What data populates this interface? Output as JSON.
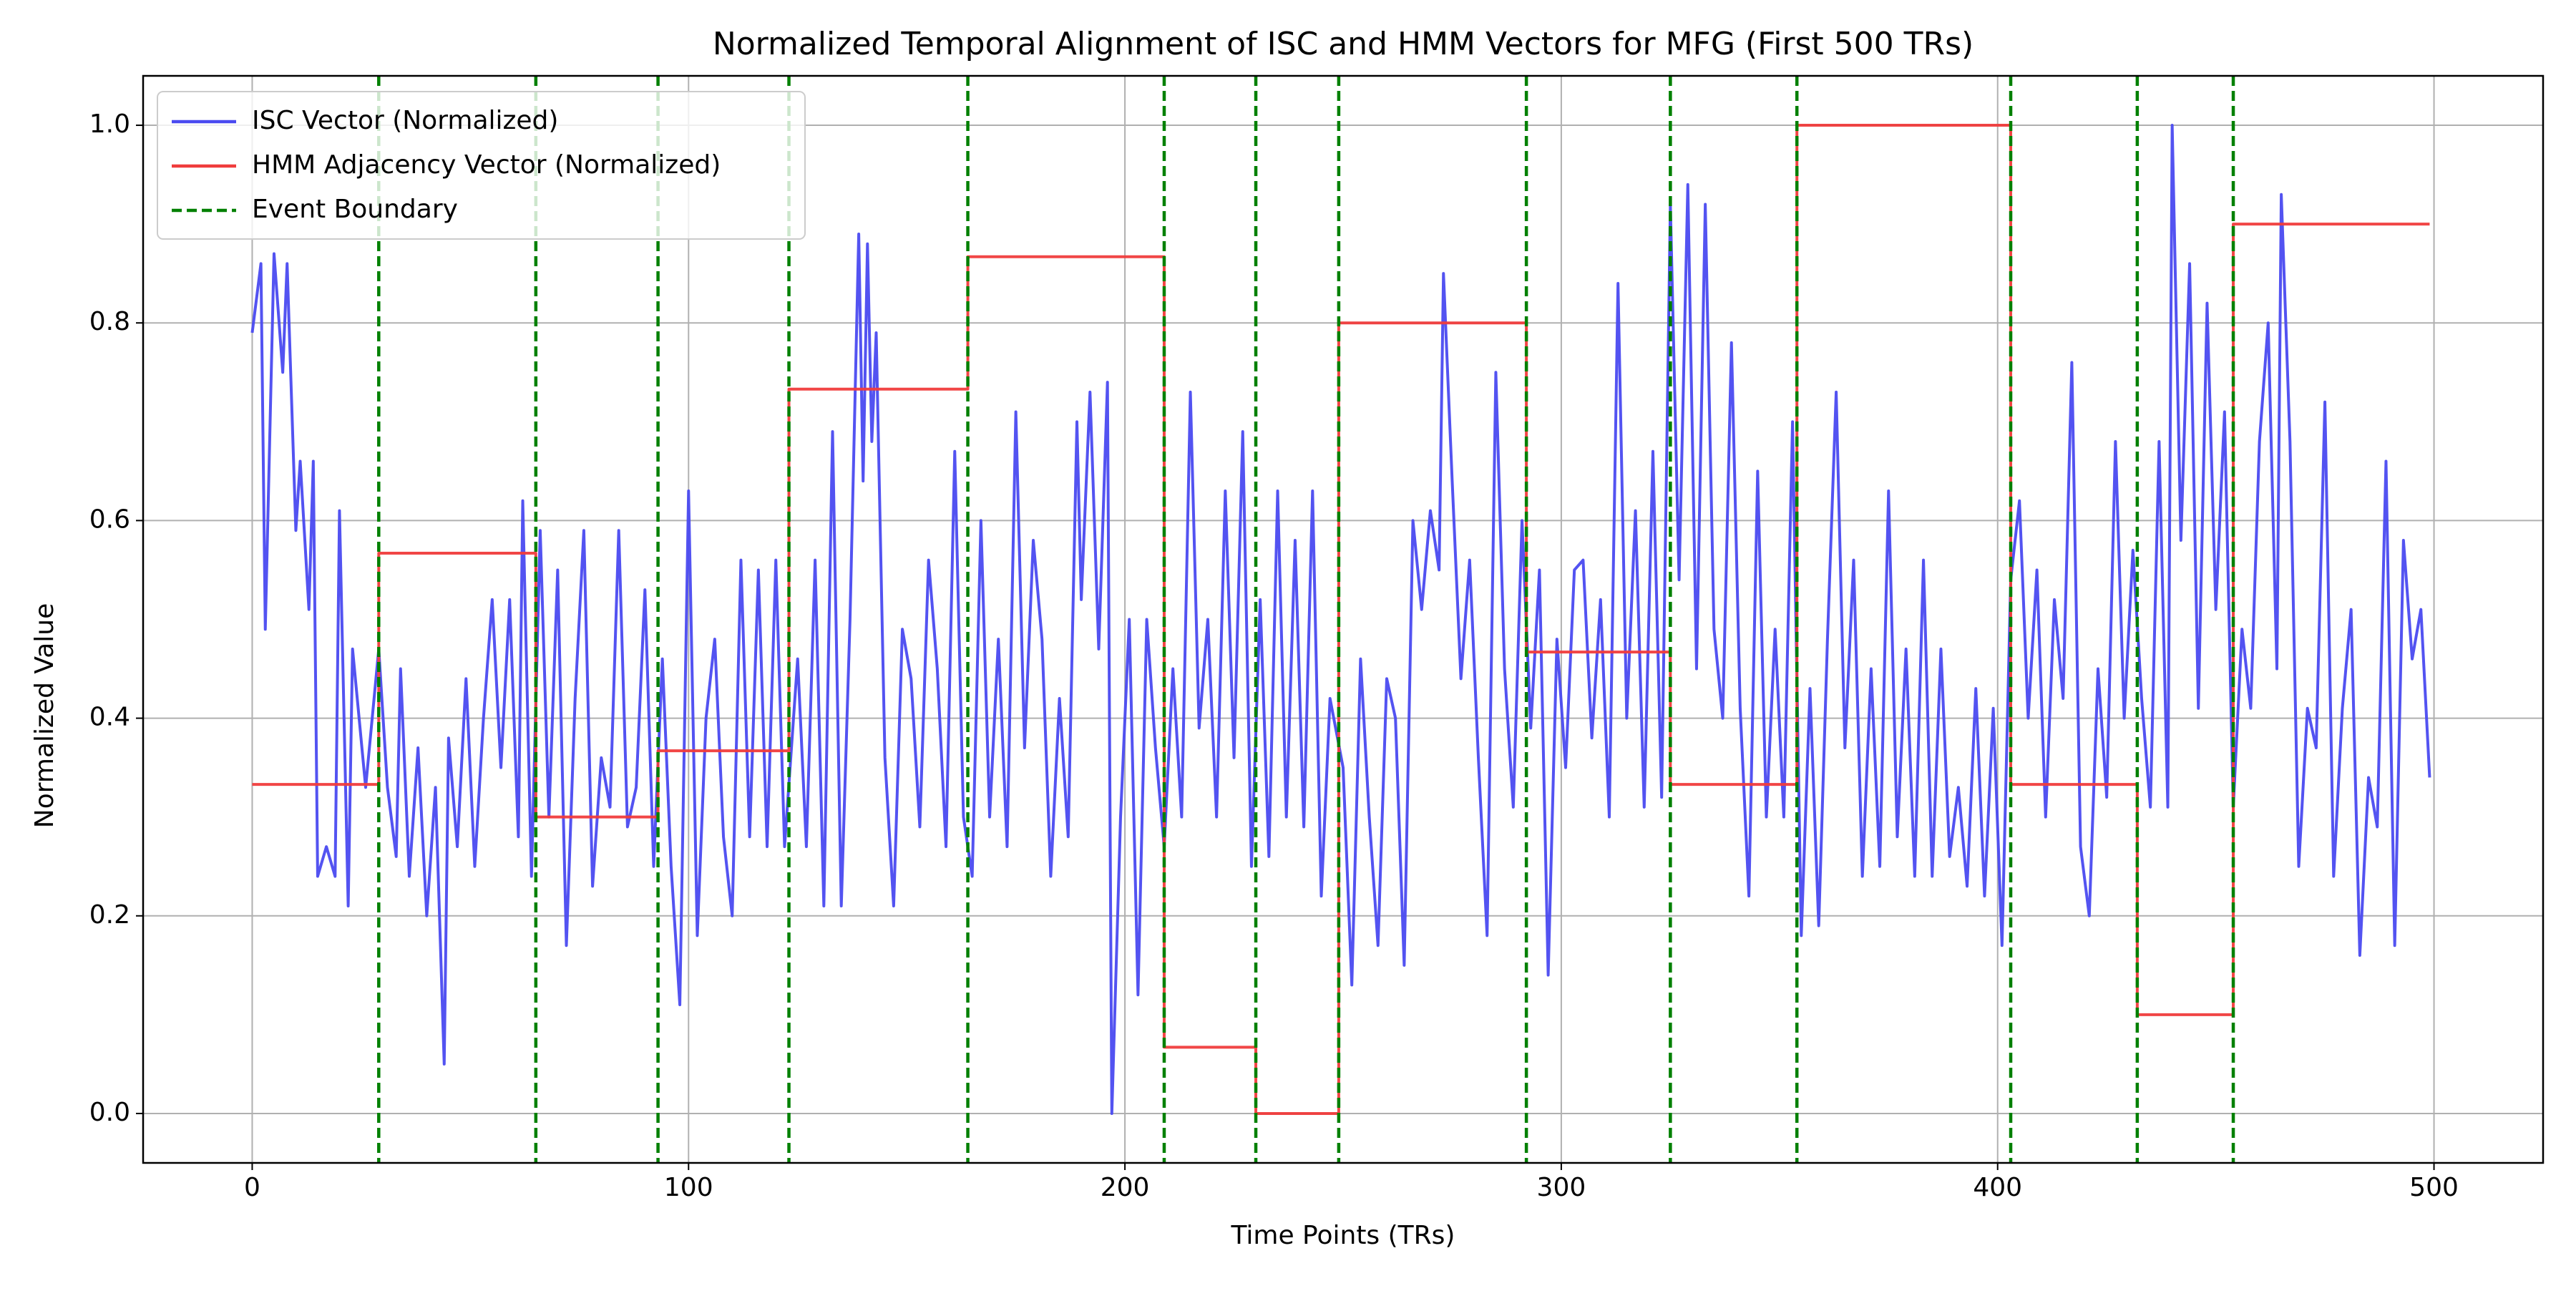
{
  "chart_data": {
    "type": "line",
    "title": "Normalized Temporal Alignment of ISC and HMM Vectors for MFG (First 500 TRs)",
    "xlabel": "Time Points (TRs)",
    "ylabel": "Normalized Value",
    "xlim": [
      -25,
      525
    ],
    "ylim": [
      -0.05,
      1.05
    ],
    "xticks": [
      0,
      100,
      200,
      300,
      400,
      500
    ],
    "yticks": [
      {
        "value": 0,
        "label": "0.0"
      },
      {
        "value": 0.2,
        "label": "0.2"
      },
      {
        "value": 0.4,
        "label": "0.4"
      },
      {
        "value": 0.6,
        "label": "0.6"
      },
      {
        "value": 0.8,
        "label": "0.8"
      },
      {
        "value": 1,
        "label": "1.0"
      }
    ],
    "grid": true,
    "legend": "upper left",
    "series": [
      {
        "name": "ISC Vector (Normalized)",
        "color": "#4a4af0",
        "x": [
          0,
          2,
          3,
          5,
          7,
          8,
          10,
          11,
          13,
          14,
          15,
          17,
          19,
          20,
          22,
          23,
          26,
          29,
          31,
          33,
          34,
          36,
          38,
          40,
          42,
          44,
          45,
          47,
          49,
          51,
          53,
          55,
          57,
          59,
          61,
          62,
          64,
          66,
          68,
          70,
          72,
          74,
          76,
          78,
          80,
          82,
          84,
          86,
          88,
          90,
          92,
          94,
          96,
          98,
          100,
          102,
          104,
          106,
          108,
          110,
          112,
          114,
          116,
          118,
          120,
          122,
          125,
          127,
          129,
          131,
          133,
          135,
          137,
          139,
          140,
          141,
          142,
          143,
          145,
          147,
          149,
          151,
          153,
          155,
          157,
          159,
          161,
          163,
          165,
          167,
          169,
          171,
          173,
          175,
          177,
          179,
          181,
          183,
          185,
          187,
          189,
          190,
          192,
          194,
          196,
          197,
          199,
          201,
          203,
          205,
          207,
          209,
          211,
          213,
          215,
          217,
          219,
          221,
          223,
          225,
          227,
          229,
          231,
          233,
          235,
          237,
          239,
          241,
          243,
          245,
          247,
          250,
          252,
          254,
          256,
          258,
          260,
          262,
          264,
          266,
          268,
          270,
          272,
          273,
          275,
          277,
          279,
          281,
          283,
          285,
          287,
          289,
          291,
          293,
          295,
          297,
          299,
          301,
          303,
          305,
          307,
          309,
          311,
          313,
          315,
          317,
          319,
          321,
          323,
          325,
          327,
          329,
          331,
          333,
          335,
          337,
          339,
          341,
          343,
          345,
          347,
          349,
          351,
          353,
          355,
          357,
          359,
          361,
          363,
          365,
          367,
          369,
          371,
          373,
          375,
          377,
          379,
          381,
          383,
          385,
          387,
          389,
          391,
          393,
          395,
          397,
          399,
          401,
          403,
          405,
          407,
          409,
          411,
          413,
          415,
          417,
          419,
          421,
          423,
          425,
          427,
          429,
          431,
          433,
          435,
          437,
          439,
          440,
          442,
          444,
          446,
          448,
          450,
          452,
          454,
          456,
          458,
          460,
          462,
          464,
          465,
          467,
          469,
          471,
          473,
          475,
          477,
          479,
          481,
          483,
          485,
          487,
          489,
          491,
          493,
          495,
          497,
          499
        ],
        "values": [
          0.79,
          0.86,
          0.49,
          0.87,
          0.75,
          0.86,
          0.59,
          0.66,
          0.51,
          0.66,
          0.24,
          0.27,
          0.24,
          0.61,
          0.21,
          0.47,
          0.33,
          0.47,
          0.33,
          0.26,
          0.45,
          0.24,
          0.37,
          0.2,
          0.33,
          0.05,
          0.38,
          0.27,
          0.44,
          0.25,
          0.4,
          0.52,
          0.35,
          0.52,
          0.28,
          0.62,
          0.24,
          0.59,
          0.3,
          0.55,
          0.17,
          0.42,
          0.59,
          0.23,
          0.36,
          0.31,
          0.59,
          0.29,
          0.33,
          0.53,
          0.25,
          0.46,
          0.25,
          0.11,
          0.63,
          0.18,
          0.4,
          0.48,
          0.28,
          0.2,
          0.56,
          0.28,
          0.55,
          0.27,
          0.56,
          0.27,
          0.46,
          0.27,
          0.56,
          0.21,
          0.69,
          0.21,
          0.5,
          0.89,
          0.64,
          0.88,
          0.68,
          0.79,
          0.36,
          0.21,
          0.49,
          0.44,
          0.29,
          0.56,
          0.45,
          0.27,
          0.67,
          0.3,
          0.24,
          0.6,
          0.3,
          0.48,
          0.27,
          0.71,
          0.37,
          0.58,
          0.48,
          0.24,
          0.42,
          0.28,
          0.7,
          0.52,
          0.73,
          0.47,
          0.74,
          0,
          0.3,
          0.5,
          0.12,
          0.5,
          0.37,
          0.27,
          0.45,
          0.3,
          0.73,
          0.39,
          0.5,
          0.3,
          0.63,
          0.36,
          0.69,
          0.25,
          0.52,
          0.26,
          0.63,
          0.3,
          0.58,
          0.29,
          0.63,
          0.22,
          0.42,
          0.35,
          0.13,
          0.46,
          0.3,
          0.17,
          0.44,
          0.4,
          0.15,
          0.6,
          0.51,
          0.61,
          0.55,
          0.85,
          0.64,
          0.44,
          0.56,
          0.36,
          0.18,
          0.75,
          0.45,
          0.31,
          0.6,
          0.39,
          0.55,
          0.14,
          0.48,
          0.35,
          0.55,
          0.56,
          0.38,
          0.52,
          0.3,
          0.84,
          0.4,
          0.61,
          0.31,
          0.67,
          0.32,
          0.92,
          0.54,
          0.94,
          0.45,
          0.92,
          0.49,
          0.4,
          0.78,
          0.41,
          0.22,
          0.65,
          0.3,
          0.49,
          0.3,
          0.7,
          0.18,
          0.43,
          0.19,
          0.48,
          0.73,
          0.37,
          0.56,
          0.24,
          0.45,
          0.25,
          0.63,
          0.28,
          0.47,
          0.24,
          0.56,
          0.24,
          0.47,
          0.26,
          0.33,
          0.23,
          0.43,
          0.22,
          0.41,
          0.17,
          0.54,
          0.62,
          0.4,
          0.55,
          0.3,
          0.52,
          0.42,
          0.76,
          0.27,
          0.2,
          0.45,
          0.32,
          0.68,
          0.4,
          0.57,
          0.42,
          0.31,
          0.68,
          0.31,
          1.0,
          0.58,
          0.86,
          0.41,
          0.82,
          0.51,
          0.71,
          0.31,
          0.49,
          0.41,
          0.68,
          0.8,
          0.45,
          0.93,
          0.68,
          0.25,
          0.41,
          0.37,
          0.72,
          0.24,
          0.41,
          0.51,
          0.16,
          0.34,
          0.29,
          0.66,
          0.17,
          0.58,
          0.46,
          0.51,
          0.34
        ]
      },
      {
        "name": "HMM Adjacency Vector (Normalized)",
        "color": "#f03c3c",
        "x": [
          0,
          29,
          29,
          65,
          65,
          93,
          93,
          123,
          123,
          164,
          164,
          209,
          209,
          230,
          230,
          249,
          249,
          292,
          292,
          325,
          325,
          354,
          354,
          403,
          403,
          432,
          432,
          454,
          454,
          499
        ],
        "values": [
          0.333,
          0.333,
          0.567,
          0.567,
          0.3,
          0.3,
          0.367,
          0.367,
          0.733,
          0.733,
          0.867,
          0.867,
          0.067,
          0.067,
          0,
          0,
          0.8,
          0.8,
          0.467,
          0.467,
          0.333,
          0.333,
          1.0,
          1.0,
          0.333,
          0.333,
          0.1,
          0.1,
          0.9,
          0.9
        ]
      }
    ],
    "boundaries": {
      "name": "Event Boundary",
      "color": "#008000",
      "x": [
        29,
        65,
        93,
        123,
        164,
        209,
        230,
        249,
        292,
        325,
        354,
        403,
        432,
        454
      ]
    }
  }
}
